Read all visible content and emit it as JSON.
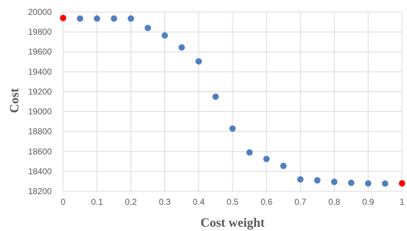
{
  "chart_data": {
    "type": "scatter",
    "xlabel": "Cost weight",
    "ylabel": "Cost",
    "xlim": [
      0,
      1
    ],
    "ylim": [
      18200,
      20000
    ],
    "x_ticks": [
      0,
      0.1,
      0.2,
      0.3,
      0.4,
      0.5,
      0.6,
      0.7,
      0.8,
      0.9,
      1
    ],
    "y_ticks": [
      18200,
      18400,
      18600,
      18800,
      19000,
      19200,
      19400,
      19600,
      19800,
      20000
    ],
    "grid": true,
    "series": [
      {
        "color": "#4f7fc0",
        "points": [
          {
            "x": 0.05,
            "y": 19935
          },
          {
            "x": 0.1,
            "y": 19935
          },
          {
            "x": 0.15,
            "y": 19935
          },
          {
            "x": 0.2,
            "y": 19935
          },
          {
            "x": 0.25,
            "y": 19840
          },
          {
            "x": 0.3,
            "y": 19765
          },
          {
            "x": 0.35,
            "y": 19645
          },
          {
            "x": 0.4,
            "y": 19505
          },
          {
            "x": 0.45,
            "y": 19150
          },
          {
            "x": 0.5,
            "y": 18830
          },
          {
            "x": 0.55,
            "y": 18590
          },
          {
            "x": 0.6,
            "y": 18525
          },
          {
            "x": 0.65,
            "y": 18455
          },
          {
            "x": 0.7,
            "y": 18320
          },
          {
            "x": 0.75,
            "y": 18310
          },
          {
            "x": 0.8,
            "y": 18295
          },
          {
            "x": 0.85,
            "y": 18285
          },
          {
            "x": 0.9,
            "y": 18280
          },
          {
            "x": 0.95,
            "y": 18278
          }
        ]
      },
      {
        "color": "#ff0000",
        "points": [
          {
            "x": 0,
            "y": 19940
          },
          {
            "x": 1,
            "y": 18280
          }
        ]
      }
    ]
  }
}
